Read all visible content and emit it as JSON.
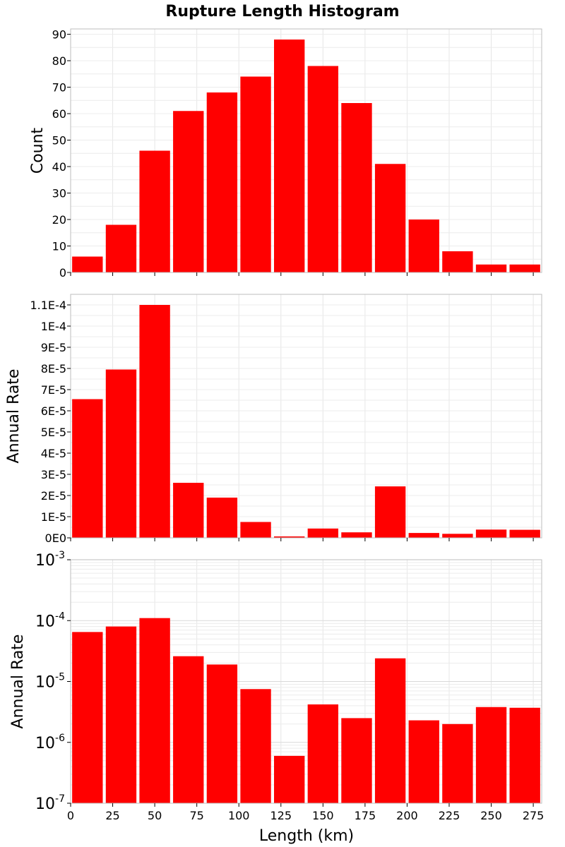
{
  "chart_data": {
    "type": "bar",
    "title": "Rupture Length Histogram",
    "xlabel": "Length (km)",
    "xlim": [
      0,
      280
    ],
    "xticks": [
      "0",
      "25",
      "50",
      "75",
      "100",
      "125",
      "150",
      "175",
      "200",
      "225",
      "250",
      "275"
    ],
    "bin_centers": [
      10,
      30,
      50,
      70,
      90,
      110,
      130,
      150,
      170,
      190,
      210,
      230,
      250,
      270
    ],
    "bar_color": "#ff0000",
    "grid": true,
    "panels": [
      {
        "ylabel": "Count",
        "scale": "linear",
        "ylim": [
          0,
          92
        ],
        "yticks": [
          "0",
          "10",
          "20",
          "30",
          "40",
          "50",
          "60",
          "70",
          "80",
          "90"
        ],
        "values": [
          6,
          18,
          46,
          61,
          68,
          74,
          88,
          78,
          64,
          41,
          20,
          8,
          3,
          3
        ]
      },
      {
        "ylabel": "Annual Rate",
        "scale": "linear",
        "ylim": [
          0,
          0.000115
        ],
        "yticks": [
          "0E0",
          "1E-5",
          "2E-5",
          "3E-5",
          "4E-5",
          "5E-5",
          "6E-5",
          "7E-5",
          "8E-5",
          "9E-5",
          "1E-4",
          "1.1E-4"
        ],
        "values": [
          6.55e-05,
          7.95e-05,
          0.00011,
          2.6e-05,
          1.9e-05,
          7.5e-06,
          6e-07,
          4.4e-06,
          2.6e-06,
          2.43e-05,
          2.3e-06,
          1.9e-06,
          3.9e-06,
          3.8e-06
        ]
      },
      {
        "ylabel": "Annual Rate",
        "scale": "log",
        "ylim": [
          1e-07,
          0.001
        ],
        "yticks": [
          "10^-7",
          "10^-6",
          "10^-5",
          "10^-4",
          "10^-3"
        ],
        "values": [
          6.5e-05,
          8e-05,
          0.00011,
          2.6e-05,
          1.9e-05,
          7.5e-06,
          6e-07,
          4.2e-06,
          2.5e-06,
          2.4e-05,
          2.3e-06,
          2e-06,
          3.8e-06,
          3.7e-06
        ]
      }
    ]
  }
}
